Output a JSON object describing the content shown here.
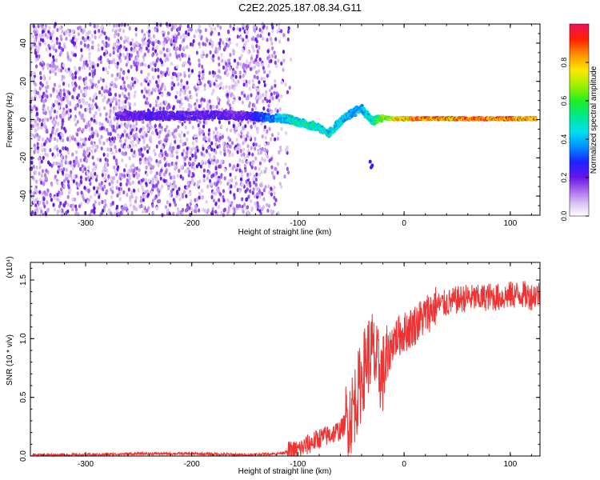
{
  "title": "C2E2.2025.187.08.34.G11",
  "chart_data": [
    {
      "type": "heatmap",
      "xlabel": "Height of straight line (km)",
      "ylabel": "Frequency (Hz)",
      "xlim": [
        -352,
        128
      ],
      "ylim": [
        -50,
        50
      ],
      "xticks": [
        "-300",
        "-200",
        "-100",
        "0",
        "100"
      ],
      "yticks": [
        "-40",
        "-20",
        "0",
        "20",
        "40"
      ],
      "colorbar": {
        "label": "Normalized spectral amplitude",
        "range": [
          0,
          1
        ],
        "ticks": [
          "0.0",
          "0.2",
          "0.4",
          "0.6",
          "0.8"
        ]
      },
      "ridge": [
        {
          "x": -270,
          "f": 2.0,
          "amp": 0.22
        },
        {
          "x": -240,
          "f": 2.0,
          "amp": 0.26
        },
        {
          "x": -210,
          "f": 2.0,
          "amp": 0.24
        },
        {
          "x": -180,
          "f": 2.5,
          "amp": 0.24
        },
        {
          "x": -150,
          "f": 2.0,
          "amp": 0.22
        },
        {
          "x": -125,
          "f": 1.0,
          "amp": 0.4
        },
        {
          "x": -110,
          "f": 0.5,
          "amp": 0.5
        },
        {
          "x": -95,
          "f": -2.0,
          "amp": 0.55
        },
        {
          "x": -80,
          "f": -4.0,
          "amp": 0.55
        },
        {
          "x": -72,
          "f": -8.0,
          "amp": 0.5
        },
        {
          "x": -62,
          "f": -2.0,
          "amp": 0.5
        },
        {
          "x": -50,
          "f": 3.0,
          "amp": 0.45
        },
        {
          "x": -40,
          "f": 6.0,
          "amp": 0.45
        },
        {
          "x": -30,
          "f": -1.0,
          "amp": 0.55
        },
        {
          "x": -20,
          "f": 1.0,
          "amp": 0.7
        },
        {
          "x": -10,
          "f": 0.5,
          "amp": 0.8
        },
        {
          "x": 0,
          "f": 0.5,
          "amp": 0.9
        },
        {
          "x": 40,
          "f": 0.5,
          "amp": 0.95
        },
        {
          "x": 80,
          "f": 0.5,
          "amp": 0.95
        },
        {
          "x": 125,
          "f": 0.5,
          "amp": 0.95
        }
      ]
    },
    {
      "type": "line",
      "xlabel": "Height of straight line (km)",
      "ylabel": "SNR (10 * v/v)",
      "yscale_label": "(x10⁴)",
      "xlim": [
        -352,
        128
      ],
      "ylim": [
        0,
        1.65
      ],
      "xticks": [
        "-300",
        "-200",
        "-100",
        "0",
        "100"
      ],
      "yticks": [
        "0.0",
        "0.5",
        "1.0",
        "1.5"
      ],
      "color": "#ee3333",
      "x": [
        -350,
        -300,
        -250,
        -200,
        -150,
        -120,
        -100,
        -90,
        -80,
        -70,
        -60,
        -50,
        -45,
        -40,
        -35,
        -30,
        -25,
        -20,
        -15,
        -10,
        0,
        10,
        20,
        30,
        40,
        50,
        60,
        70,
        80,
        90,
        100,
        110,
        120,
        125
      ],
      "values": [
        0.01,
        0.01,
        0.02,
        0.02,
        0.01,
        0.02,
        0.05,
        0.1,
        0.15,
        0.18,
        0.22,
        0.35,
        0.5,
        0.65,
        0.85,
        0.9,
        0.75,
        0.7,
        0.85,
        1.0,
        1.05,
        1.12,
        1.2,
        1.28,
        1.3,
        1.33,
        1.35,
        1.34,
        1.36,
        1.35,
        1.37,
        1.38,
        1.36,
        1.38
      ]
    }
  ]
}
